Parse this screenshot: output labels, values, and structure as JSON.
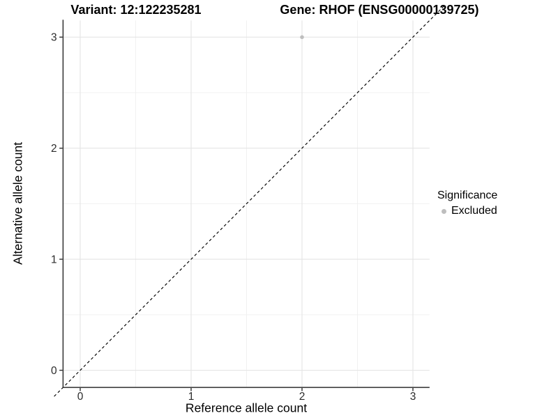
{
  "chart_data": {
    "type": "scatter",
    "titles": {
      "variant": "Variant: 12:122235281",
      "gene": "Gene: RHOF (ENSG00000139725)"
    },
    "xlabel": "Reference allele count",
    "ylabel": "Alternative allele count",
    "x_ticks": [
      0,
      1,
      2,
      3
    ],
    "y_ticks": [
      0,
      1,
      2,
      3
    ],
    "xlim": [
      -0.15,
      3.15
    ],
    "ylim": [
      -0.15,
      3.15
    ],
    "grid": true,
    "minor_grid_step": 0.5,
    "reference_line": {
      "type": "identity",
      "slope": 1,
      "intercept": 0,
      "style": "dashed",
      "color": "#000000"
    },
    "series": [
      {
        "name": "Excluded",
        "color": "#bebebe",
        "points": [
          {
            "x": 2,
            "y": 3
          }
        ]
      }
    ],
    "legend": {
      "position": "right",
      "title": "Significance",
      "items": [
        {
          "label": "Excluded",
          "color": "#bebebe"
        }
      ]
    },
    "colors": {
      "background": "#ffffff",
      "grid_major": "#e4e4e4",
      "grid_minor": "#f0f0f0",
      "axis": "#2f2f2f",
      "text": "#000000",
      "point": "#bebebe"
    }
  }
}
